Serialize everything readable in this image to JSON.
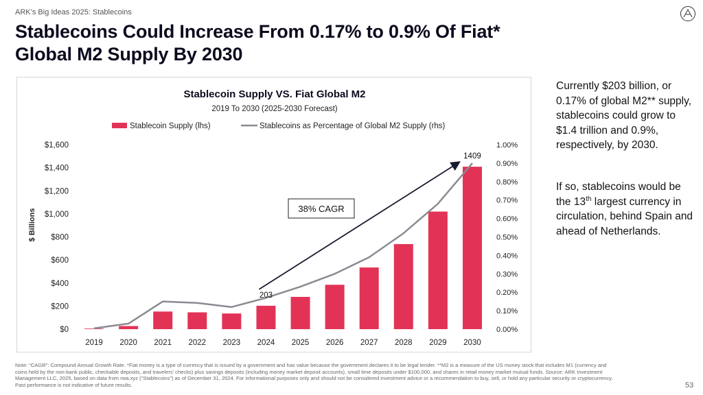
{
  "header": {
    "kicker": "ARK’s Big Ideas 2025: Stablecoins",
    "title": "Stablecoins Could Increase From 0.17% to 0.9% Of Fiat* Global M2 Supply By 2030"
  },
  "side_text": {
    "p1": "Currently $203 billion, or 0.17% of global M2** supply, stablecoins could grow to $1.4 trillion and 0.9%, respectively, by 2030.",
    "p2_before": "If so, stablecoins would be the 13",
    "p2_sup": "th",
    "p2_after": " largest currency in circulation, behind Spain and ahead of Netherlands."
  },
  "footnote": "Note: “CAGR”: Compound Annual Growth Rate. *Fiat money is a type of currency that is issued by a government and has value because the government declares it to be legal tender. **M2 is a measure of the US money stock that includes M1 (currency and coins held by the non-bank public, checkable deposits, and travelers’ checks) plus savings deposits (including money market deposit accounts), small time deposits under $100,000, and shares in retail money market mutual funds. Source: ARK Investment Management LLC, 2025, based on data from rwa.xyz (“Stablecoins”) as of December 31, 2024. For informational purposes only and should not be considered investment advice or a recommendation to buy, sell, or hold any particular security or cryptocurrency. Past performance is not indicative of future results.",
  "page_number": "53",
  "colors": {
    "bar": "#e23356",
    "line": "#8a8a92",
    "arrow": "#1a1a2e",
    "title": "#0b0b1e"
  },
  "chart_data": {
    "type": "bar",
    "title": "Stablecoin Supply VS. Fiat Global M2",
    "subtitle": "2019 To 2030 (2025-2030 Forecast)",
    "categories": [
      "2019",
      "2020",
      "2021",
      "2022",
      "2023",
      "2024",
      "2025",
      "2026",
      "2027",
      "2028",
      "2029",
      "2030"
    ],
    "series": [
      {
        "name": "Stablecoin Supply (lhs)",
        "type": "bar",
        "axis": "left",
        "values": [
          5,
          27,
          153,
          146,
          136,
          203,
          280,
          385,
          535,
          738,
          1020,
          1409
        ]
      },
      {
        "name": "Stablecoins as Percentage of Global M2 Supply (rhs)",
        "type": "line",
        "axis": "right",
        "values": [
          0.005,
          0.03,
          0.15,
          0.142,
          0.12,
          0.17,
          0.23,
          0.3,
          0.39,
          0.52,
          0.68,
          0.9
        ]
      }
    ],
    "ylabel": "$ Billions",
    "ylim": [
      0,
      1600
    ],
    "yticks": [
      0,
      200,
      400,
      600,
      800,
      1000,
      1200,
      1400,
      1600
    ],
    "ytick_labels": [
      "$0",
      "$200",
      "$400",
      "$600",
      "$800",
      "$1,000",
      "$1,200",
      "$1,400",
      "$1,600"
    ],
    "y2lim": [
      0,
      1.0
    ],
    "y2ticks": [
      0,
      0.1,
      0.2,
      0.3,
      0.4,
      0.5,
      0.6,
      0.7,
      0.8,
      0.9,
      1.0
    ],
    "y2tick_labels": [
      "0.00%",
      "0.10%",
      "0.20%",
      "0.30%",
      "0.40%",
      "0.50%",
      "0.60%",
      "0.70%",
      "0.80%",
      "0.90%",
      "1.00%"
    ],
    "annotations": [
      {
        "text": "203",
        "category": "2024"
      },
      {
        "text": "1409",
        "category": "2030"
      },
      {
        "text": "38% CAGR",
        "kind": "boxed-label"
      }
    ],
    "arrow": {
      "from_category": "2024",
      "from_value": 203,
      "to_category": "2030",
      "to_value": 1409
    },
    "legend_position": "top",
    "grid": false
  }
}
